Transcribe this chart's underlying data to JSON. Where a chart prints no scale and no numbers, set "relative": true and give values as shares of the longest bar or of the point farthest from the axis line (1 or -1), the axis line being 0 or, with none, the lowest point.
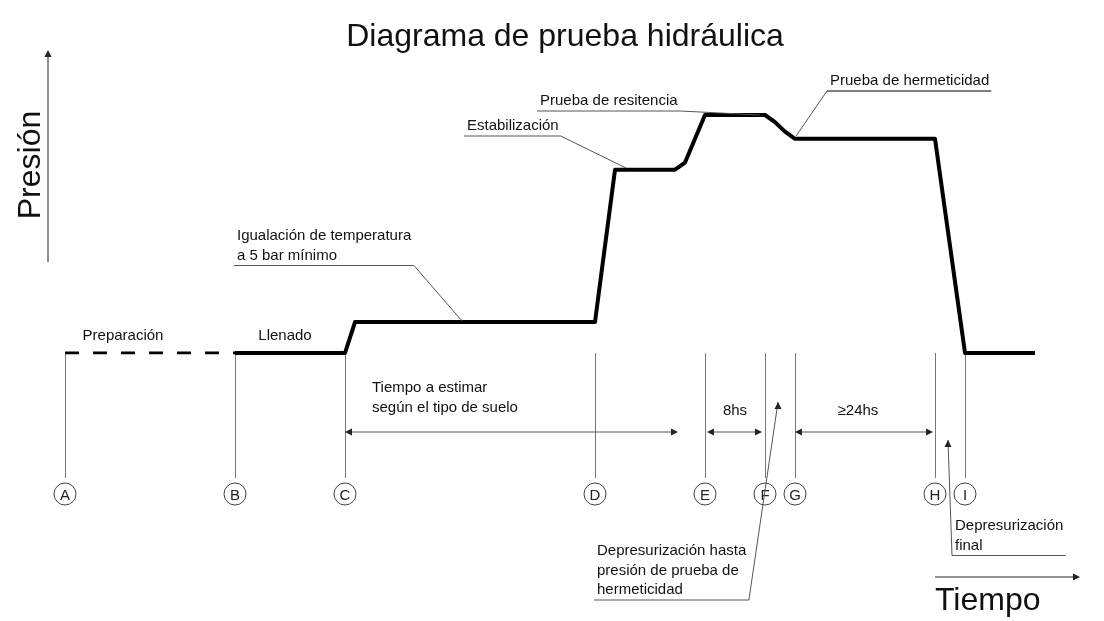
{
  "chart_data": {
    "type": "line",
    "title": "Diagrama de prueba hidráulica",
    "xlabel": "Tiempo",
    "ylabel": "Presión",
    "relative": true,
    "grid": false,
    "marker": "none",
    "line_style": "solid",
    "tick_labels": "x",
    "categories": [
      "A",
      null,
      null,
      null,
      null,
      null,
      null,
      null,
      null,
      null,
      null,
      null,
      null,
      null,
      null,
      null,
      null,
      "B",
      null,
      null,
      null,
      null,
      null,
      null,
      null,
      null,
      null,
      null,
      "C",
      null,
      null,
      null,
      null,
      null,
      null,
      null,
      null,
      null,
      null,
      null,
      null,
      null,
      null,
      null,
      null,
      null,
      null,
      null,
      null,
      null,
      null,
      null,
      null,
      "D",
      null,
      null,
      null,
      null,
      null,
      null,
      null,
      null,
      null,
      null,
      "E",
      null,
      null,
      null,
      null,
      null,
      "F",
      null,
      null,
      "G",
      null,
      null,
      null,
      null,
      null,
      null,
      null,
      null,
      null,
      null,
      null,
      null,
      null,
      "H",
      null,
      null,
      "I",
      null,
      null,
      null,
      null,
      null,
      null,
      null
    ],
    "series": [
      {
        "color": "#000000",
        "line_style": "dashed",
        "values": [
          0,
          0,
          0,
          0,
          0,
          0,
          0,
          0,
          0,
          0,
          0,
          0,
          0,
          0,
          0,
          0,
          0,
          0,
          null,
          null,
          null,
          null,
          null,
          null,
          null,
          null,
          null,
          null,
          null,
          null,
          null,
          null,
          null,
          null,
          null,
          null,
          null,
          null,
          null,
          null,
          null,
          null,
          null,
          null,
          null,
          null,
          null,
          null,
          null,
          null,
          null,
          null,
          null,
          null,
          null,
          null,
          null,
          null,
          null,
          null,
          null,
          null,
          null,
          null,
          null,
          null,
          null,
          null,
          null,
          null,
          null,
          null,
          null,
          null,
          null,
          null,
          null,
          null,
          null,
          null,
          null,
          null,
          null,
          null,
          null,
          null,
          null,
          null,
          null,
          null,
          null,
          null,
          null,
          null,
          null,
          null,
          null,
          null
        ]
      },
      {
        "color": "#000000",
        "values": [
          null,
          null,
          null,
          null,
          null,
          null,
          null,
          null,
          null,
          null,
          null,
          null,
          null,
          null,
          null,
          null,
          null,
          0,
          0,
          0,
          0,
          0,
          0,
          0,
          0,
          0,
          0,
          0,
          0,
          0.13,
          0.13,
          0.13,
          0.13,
          0.13,
          0.13,
          0.13,
          0.13,
          0.13,
          0.13,
          0.13,
          0.13,
          0.13,
          0.13,
          0.13,
          0.13,
          0.13,
          0.13,
          0.13,
          0.13,
          0.13,
          0.13,
          0.13,
          0.13,
          0.13,
          0.45,
          0.77,
          0.77,
          0.77,
          0.77,
          0.77,
          0.77,
          0.77,
          0.8,
          0.9,
          1,
          1,
          1,
          1,
          1,
          1,
          1,
          0.97,
          0.93,
          0.9,
          0.9,
          0.9,
          0.9,
          0.9,
          0.9,
          0.9,
          0.9,
          0.9,
          0.9,
          0.9,
          0.9,
          0.9,
          0.9,
          0.9,
          0.6,
          0.3,
          0,
          0,
          0,
          0,
          0,
          0,
          0,
          0
        ]
      }
    ],
    "annotations": [
      "Preparación",
      "Llenado",
      "Igualación de temperatura\na 5 bar mínimo",
      "Estabilización",
      "Prueba de resitencia",
      "Prueba de hermeticidad",
      "Tiempo a estimar\nsegún el tipo de suelo",
      "8hs",
      "≥24hs",
      "Depresurización hasta\npresión de prueba de\nhermeticidad",
      "Depresurización\nfinal"
    ]
  }
}
